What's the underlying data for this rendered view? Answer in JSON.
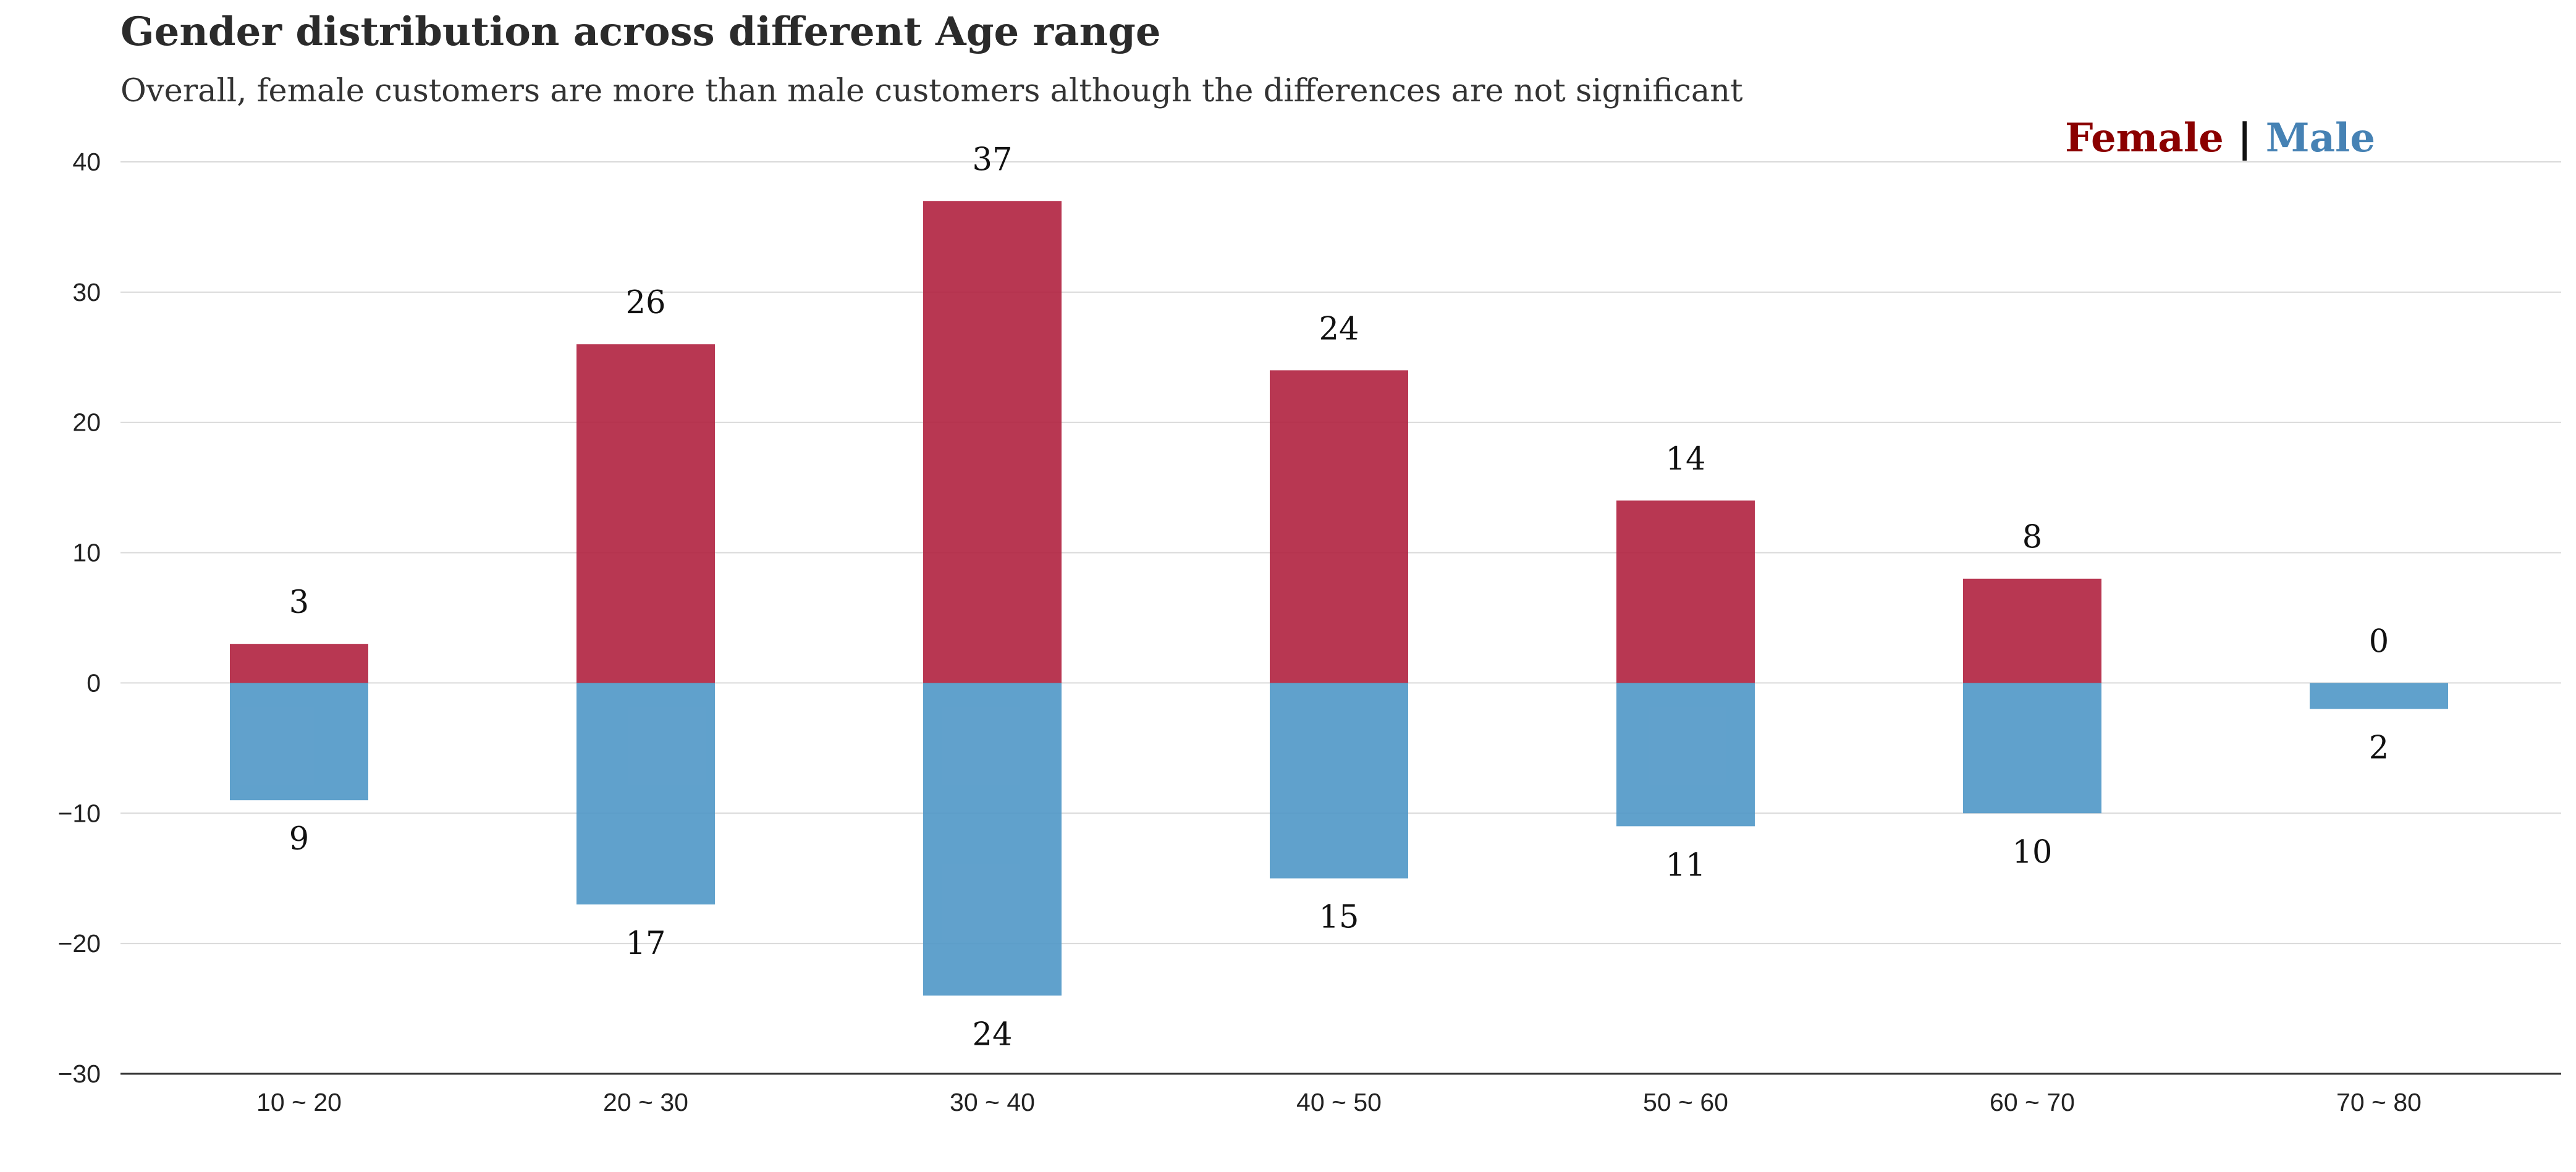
{
  "header": {
    "title": "Gender distribution across different Age range",
    "subtitle": "Overall, female customers are more than male customers although the differences are not significant"
  },
  "legend": {
    "female_label": "Female",
    "separator": "|",
    "male_label": "Male"
  },
  "colors": {
    "female": "#b0213f",
    "male": "#4f97c6",
    "female_legend": "#8b0000",
    "male_legend": "#4682b4",
    "grid": "#d9d9d9",
    "axis": "#333333"
  },
  "chart_data": {
    "type": "bar",
    "title": "Gender distribution across different Age range",
    "subtitle": "Overall, female customers are more than male customers although the differences are not significant",
    "categories": [
      "10 ~ 20",
      "20 ~ 30",
      "30 ~ 40",
      "40 ~ 50",
      "50 ~ 60",
      "60 ~ 70",
      "70 ~ 80"
    ],
    "series": [
      {
        "name": "Female",
        "values": [
          3,
          26,
          37,
          24,
          14,
          8,
          0
        ]
      },
      {
        "name": "Male",
        "values": [
          -9,
          -17,
          -24,
          -15,
          -11,
          -10,
          -2
        ]
      }
    ],
    "data_labels": {
      "female": [
        "3",
        "26",
        "37",
        "24",
        "14",
        "8",
        "0"
      ],
      "male": [
        "9",
        "17",
        "24",
        "15",
        "11",
        "10",
        "2"
      ]
    },
    "ylim": [
      -30,
      40
    ],
    "yticks": [
      40,
      30,
      20,
      10,
      0,
      -10,
      -20,
      -30
    ],
    "ytick_labels": [
      "40",
      "30",
      "20",
      "10",
      "0",
      "−10",
      "−20",
      "−30"
    ],
    "xlabel": "",
    "ylabel": "",
    "grid": true,
    "legend_position": "top-right"
  }
}
